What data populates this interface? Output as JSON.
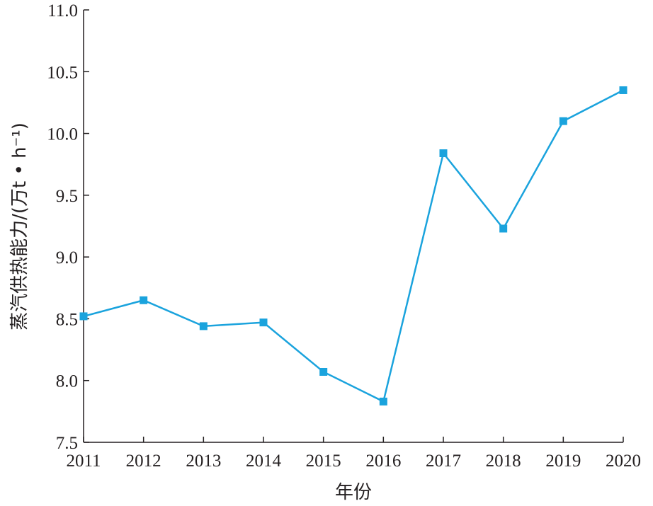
{
  "chart_data": {
    "type": "line",
    "xlabel": "年份",
    "ylabel": "蒸汽供热能力/(万t • h⁻¹)",
    "x": [
      "2011",
      "2012",
      "2013",
      "2014",
      "2015",
      "2016",
      "2017",
      "2018",
      "2019",
      "2020"
    ],
    "ylim": [
      7.5,
      11.0
    ],
    "yticks": [
      "7.5",
      "8.0",
      "8.5",
      "9.0",
      "9.5",
      "10.0",
      "10.5",
      "11.0"
    ],
    "grid": false,
    "series": [
      {
        "color": "#1aa3dd",
        "marker": "square",
        "values": [
          8.52,
          8.65,
          8.44,
          8.47,
          8.07,
          7.83,
          9.84,
          9.23,
          10.1,
          10.35
        ]
      }
    ]
  }
}
